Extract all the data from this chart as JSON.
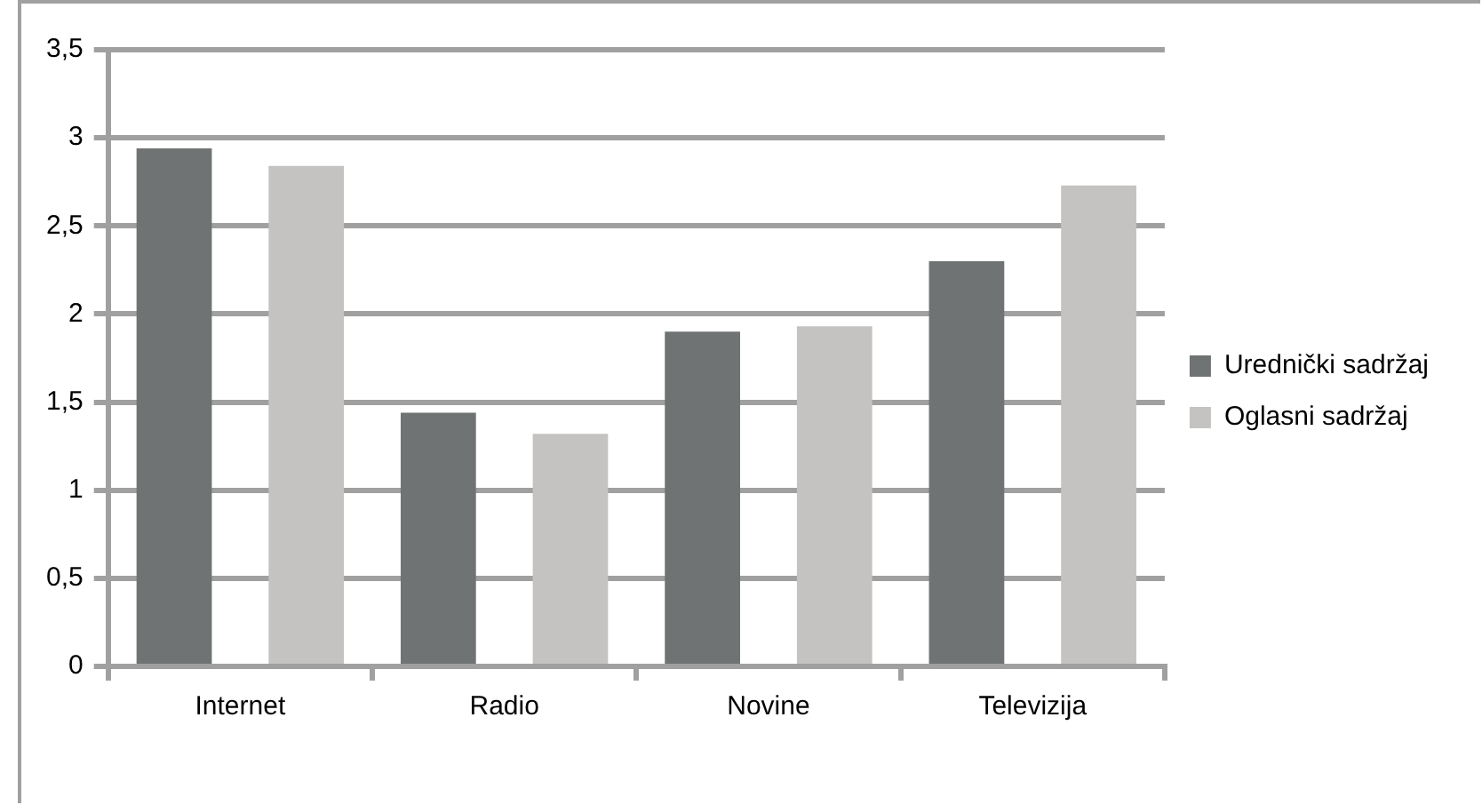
{
  "chart_data": {
    "type": "bar",
    "categories": [
      "Internet",
      "Radio",
      "Novine",
      "Televizija"
    ],
    "series": [
      {
        "name": "Urednički sadržaj",
        "color": "#6f7373",
        "values": [
          2.94,
          1.44,
          1.9,
          2.3
        ]
      },
      {
        "name": "Oglasni sadržaj",
        "color": "#c4c3c1",
        "values": [
          2.84,
          1.32,
          1.93,
          2.73
        ]
      }
    ],
    "ylim": [
      0,
      3.5
    ],
    "yticks": [
      {
        "value": 0,
        "label": "0"
      },
      {
        "value": 0.5,
        "label": "0,5"
      },
      {
        "value": 1,
        "label": "1"
      },
      {
        "value": 1.5,
        "label": "1,5"
      },
      {
        "value": 2,
        "label": "2"
      },
      {
        "value": 2.5,
        "label": "2,5"
      },
      {
        "value": 3,
        "label": "3"
      },
      {
        "value": 3.5,
        "label": "3,5"
      }
    ],
    "grid": "y",
    "legend": "right"
  }
}
